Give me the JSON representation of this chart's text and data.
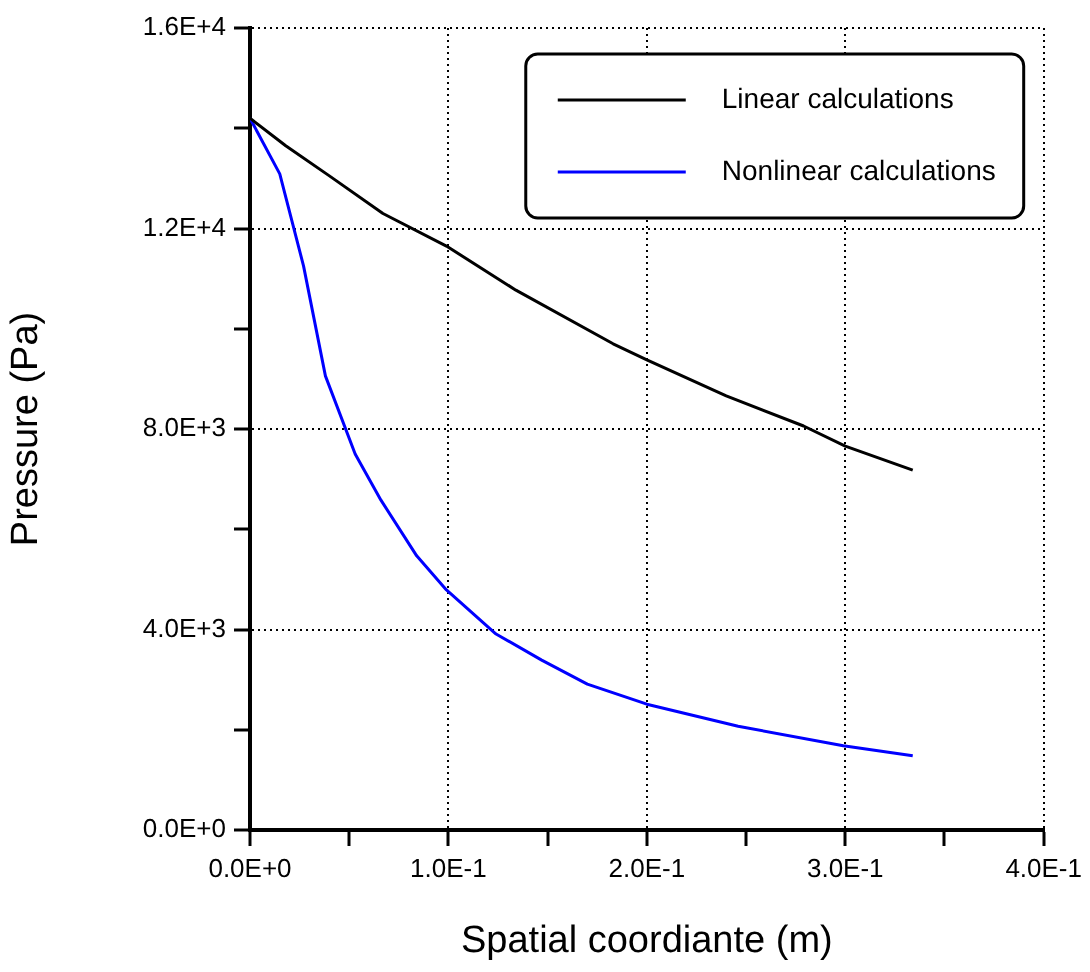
{
  "chart_data": {
    "type": "line",
    "xlabel": "Spatial coordiante (m)",
    "ylabel": "Pressure (Pa)",
    "xlim": [
      0,
      0.4
    ],
    "ylim": [
      0,
      16000
    ],
    "xticks": [
      {
        "value": 0,
        "label": "0.0E+0"
      },
      {
        "value": 0.05,
        "label": null
      },
      {
        "value": 0.1,
        "label": "1.0E-1"
      },
      {
        "value": 0.15,
        "label": null
      },
      {
        "value": 0.2,
        "label": "2.0E-1"
      },
      {
        "value": 0.25,
        "label": null
      },
      {
        "value": 0.3,
        "label": "3.0E-1"
      },
      {
        "value": 0.35,
        "label": null
      },
      {
        "value": 0.4,
        "label": "4.0E-1"
      }
    ],
    "yticks": [
      {
        "value": 0,
        "label": "0.0E+0"
      },
      {
        "value": 2000,
        "label": null
      },
      {
        "value": 4000,
        "label": "4.0E+3"
      },
      {
        "value": 6000,
        "label": null
      },
      {
        "value": 8000,
        "label": "8.0E+3"
      },
      {
        "value": 10000,
        "label": null
      },
      {
        "value": 12000,
        "label": "1.2E+4"
      },
      {
        "value": 14000,
        "label": null
      },
      {
        "value": 16000,
        "label": "1.6E+4"
      }
    ],
    "grid": true,
    "legend": "top right",
    "marker": "none",
    "line_style": "solid",
    "series": [
      {
        "name": "Linear calculations",
        "color": "#000000",
        "x": [
          0,
          0.018,
          0.04,
          0.067,
          0.099,
          0.134,
          0.183,
          0.2,
          0.24,
          0.279,
          0.3,
          0.334
        ],
        "values": [
          14200,
          13650,
          13050,
          12300,
          11650,
          10770,
          9700,
          9380,
          8660,
          8060,
          7660,
          7180
        ]
      },
      {
        "name": "Nonlinear calculations",
        "color": "#0000ff",
        "x": [
          0,
          0.015,
          0.027,
          0.038,
          0.053,
          0.066,
          0.084,
          0.099,
          0.124,
          0.147,
          0.17,
          0.2,
          0.246,
          0.299,
          0.334
        ],
        "values": [
          14200,
          13090,
          11250,
          9060,
          7500,
          6580,
          5470,
          4790,
          3910,
          3390,
          2910,
          2510,
          2070,
          1680,
          1480
        ]
      }
    ]
  }
}
